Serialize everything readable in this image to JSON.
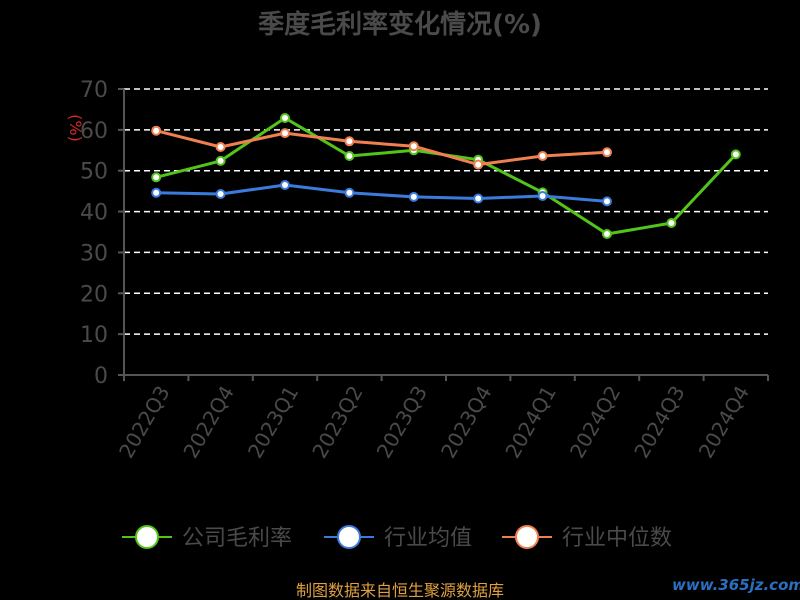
{
  "chart_data": {
    "type": "line",
    "title": "季度毛利率变化情况(%)",
    "ylabel": "(%)",
    "xlabel": "",
    "ylim": [
      0,
      70
    ],
    "yticks": [
      0,
      10,
      20,
      30,
      40,
      50,
      60,
      70
    ],
    "categories": [
      "2022Q3",
      "2022Q4",
      "2023Q1",
      "2023Q2",
      "2023Q3",
      "2023Q4",
      "2024Q1",
      "2024Q2",
      "2024Q3",
      "2024Q4"
    ],
    "grid": true,
    "legend_position": "bottom",
    "series": [
      {
        "name": "公司毛利率",
        "color": "#52c41a",
        "values": [
          48.4,
          52.4,
          62.9,
          53.6,
          55.0,
          52.7,
          44.7,
          34.5,
          37.2,
          54.0
        ]
      },
      {
        "name": "行业均值",
        "color": "#3a7bdc",
        "values": [
          44.6,
          44.3,
          46.5,
          44.6,
          43.6,
          43.2,
          43.8,
          42.5,
          null,
          null
        ]
      },
      {
        "name": "行业中位数",
        "color": "#f08050",
        "values": [
          59.8,
          55.8,
          59.2,
          57.2,
          56.0,
          51.5,
          53.6,
          54.5,
          null,
          null
        ]
      }
    ]
  },
  "footer": {
    "source": "制图数据来自恒生聚源数据库",
    "watermark": "www.365jz.com"
  }
}
